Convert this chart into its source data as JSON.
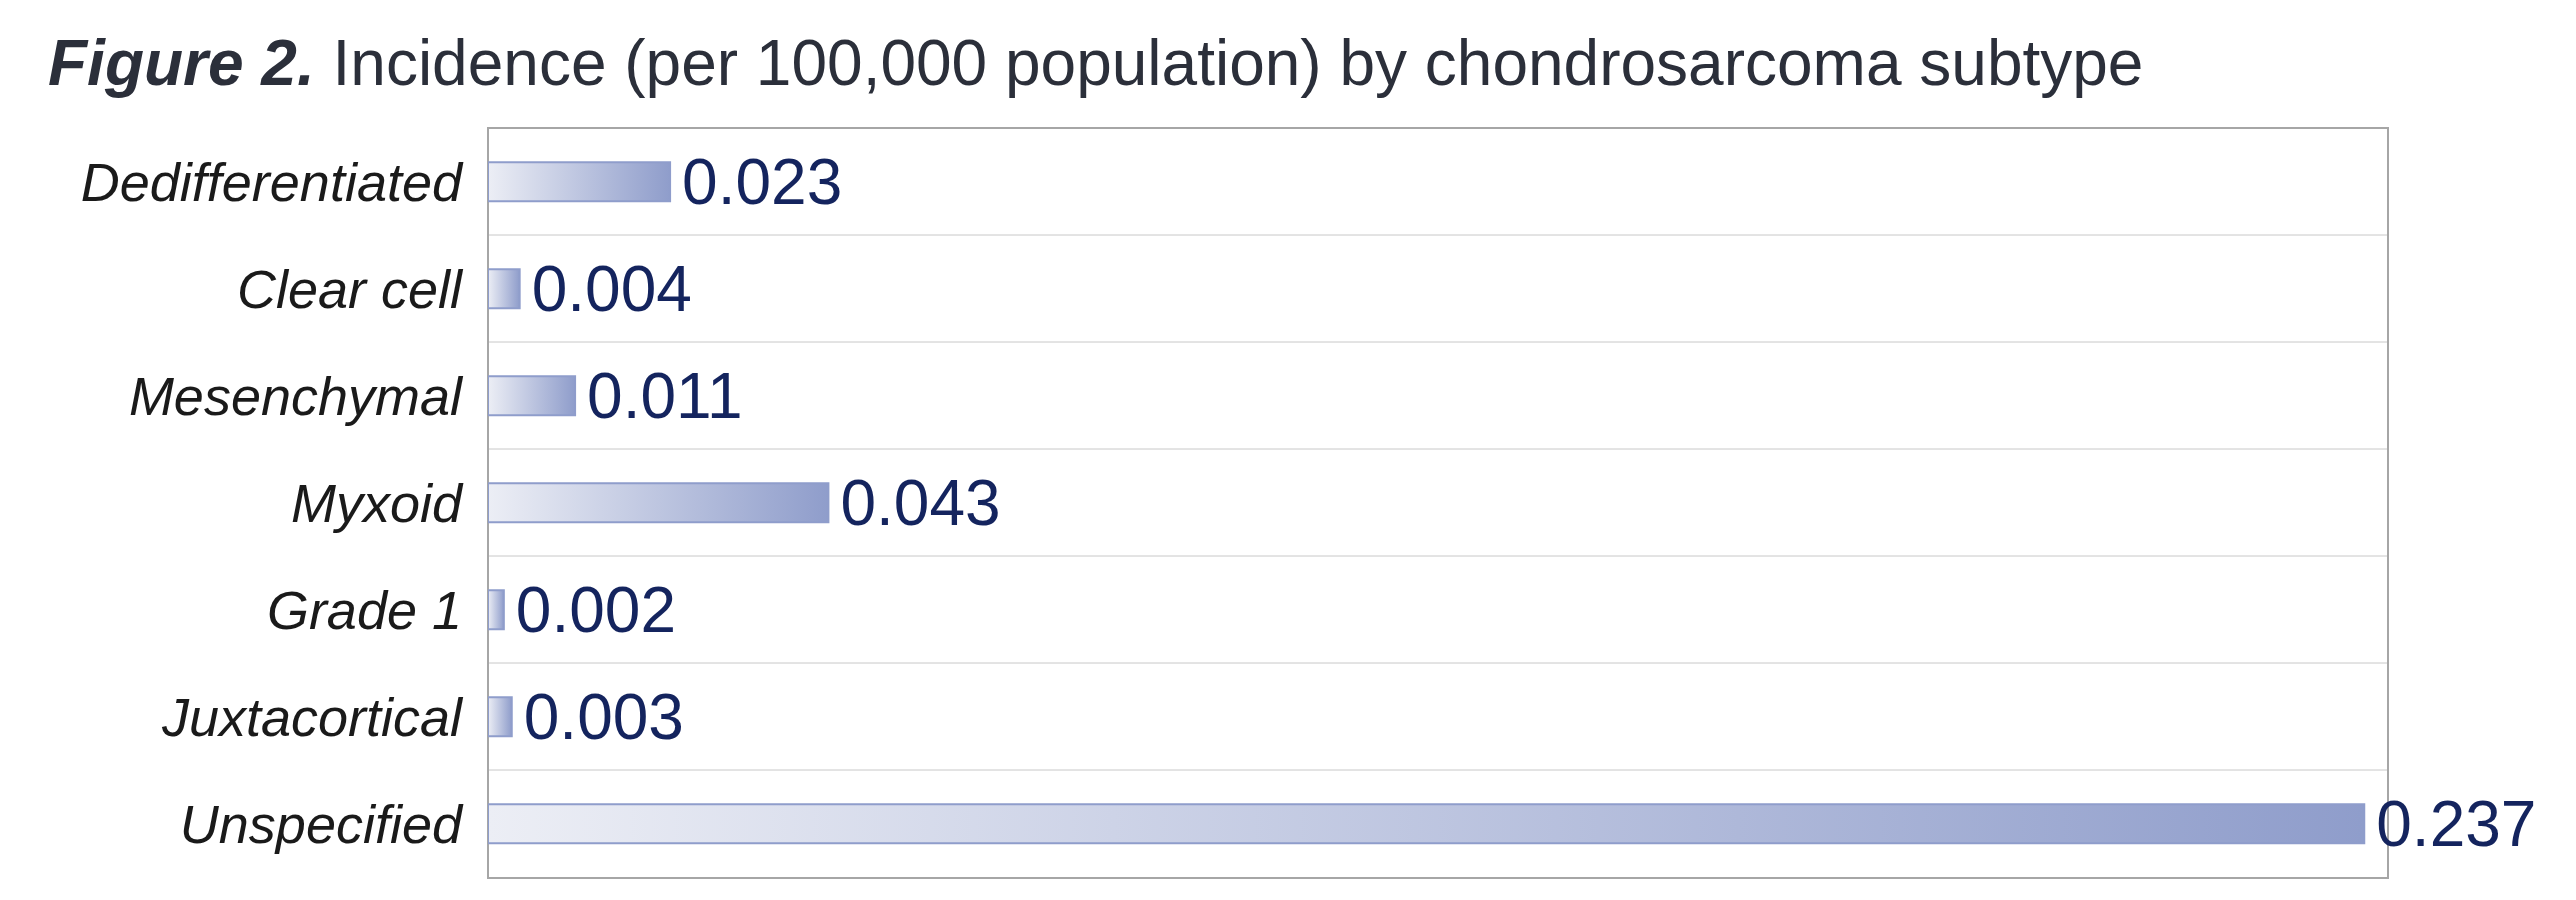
{
  "chart_data": {
    "type": "bar",
    "orientation": "horizontal",
    "title": "Figure 2. Incidence (per 100,000 population) by chondrosarcoma subtype",
    "categories": [
      "Dedifferentiated",
      "Clear cell",
      "Mesenchymal",
      "Myxoid",
      "Grade 1",
      "Juxtacortical",
      "Unspecified"
    ],
    "values": [
      0.023,
      0.004,
      0.011,
      0.043,
      0.002,
      0.003,
      0.237
    ],
    "color": "#8f9dcb",
    "tick_labels": "y",
    "grid": true,
    "data_labels": true
  }
}
